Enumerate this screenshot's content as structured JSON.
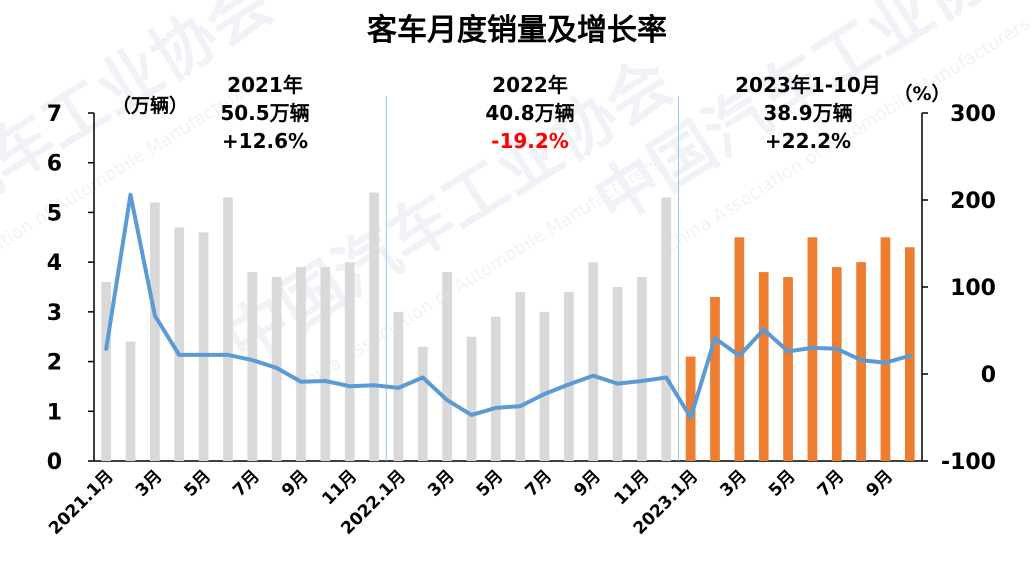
{
  "chart_data": {
    "type": "bar",
    "title": "客车月度销量及增长率",
    "y_left_unit": "（万辆）",
    "y_right_unit": "（%）",
    "y_left_ticks": [
      "0",
      "1",
      "2",
      "3",
      "4",
      "5",
      "6",
      "7"
    ],
    "y_right_ticks": [
      "-100",
      "0",
      "100",
      "200",
      "300"
    ],
    "ylim_left": [
      0,
      7
    ],
    "ylim_right": [
      -100,
      300
    ],
    "categories": [
      "2021.1月",
      "2月",
      "3月",
      "4月",
      "5月",
      "6月",
      "7月",
      "8月",
      "9月",
      "10月",
      "11月",
      "12月",
      "2022.1月",
      "2月",
      "3月",
      "4月",
      "5月",
      "6月",
      "7月",
      "8月",
      "9月",
      "10月",
      "11月",
      "12月",
      "2023.1月",
      "2月",
      "3月",
      "4月",
      "5月",
      "6月",
      "7月",
      "8月",
      "9月",
      "10月"
    ],
    "x_tick_labels": [
      "2021.1月",
      "",
      "3月",
      "",
      "5月",
      "",
      "7月",
      "",
      "9月",
      "",
      "11月",
      "",
      "2022.1月",
      "",
      "3月",
      "",
      "5月",
      "",
      "7月",
      "",
      "9月",
      "",
      "11月",
      "",
      "2023.1月",
      "",
      "3月",
      "",
      "5月",
      "",
      "7月",
      "",
      "9月",
      ""
    ],
    "series": [
      {
        "name": "销量",
        "axis": "left",
        "kind": "bar",
        "values": [
          3.6,
          2.4,
          5.2,
          4.7,
          4.6,
          5.3,
          3.8,
          3.7,
          3.9,
          3.9,
          4.0,
          5.4,
          3.0,
          2.3,
          3.8,
          2.5,
          2.9,
          3.4,
          3.0,
          3.4,
          4.0,
          3.5,
          3.7,
          5.3,
          2.1,
          3.3,
          4.5,
          3.8,
          3.7,
          4.5,
          3.9,
          4.0,
          4.5,
          4.3
        ]
      },
      {
        "name": "增长率",
        "axis": "right",
        "kind": "line",
        "values": [
          29,
          206,
          67,
          22,
          22,
          22,
          16,
          7,
          -9,
          -8,
          -14,
          -13,
          -16,
          -4,
          -30,
          -47,
          -39,
          -37,
          -23,
          -12,
          -2,
          -11,
          -8,
          -4,
          -50,
          41,
          21,
          51,
          26,
          30,
          29,
          16,
          13,
          21
        ]
      }
    ],
    "colors": {
      "bar_2021_2022": "#d9d9d9",
      "bar_2023": "#ed7d31",
      "line": "#5b9bd5"
    },
    "annotations": [
      {
        "year": "2021年",
        "volume": "50.5万辆",
        "growth": "+12.6%",
        "growth_color": "#000000"
      },
      {
        "year": "2022年",
        "volume": "40.8万辆",
        "growth": "-19.2%",
        "growth_color": "#ff0000"
      },
      {
        "year": "2023年1-10月",
        "volume": "38.9万辆",
        "growth": "+22.2%",
        "growth_color": "#000000"
      }
    ],
    "watermark": "中国汽车工业协会 China Association of Automobile Manufacturers",
    "grid": false,
    "legend": "none"
  }
}
